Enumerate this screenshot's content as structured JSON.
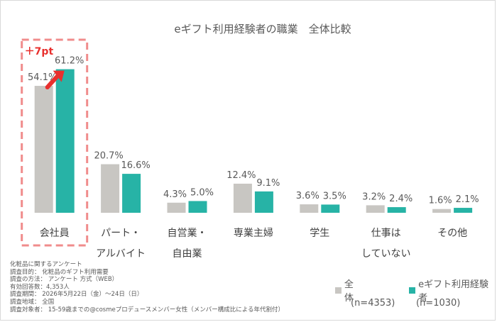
{
  "chart_data": {
    "type": "bar",
    "title": "eギフト利用経験者の職業　全体比較",
    "categories": [
      [
        "会社員"
      ],
      [
        "パート・",
        "アルバイト"
      ],
      [
        "自営業・",
        "自由業"
      ],
      [
        "専業主婦"
      ],
      [
        "学生"
      ],
      [
        "仕事は",
        "していない"
      ],
      [
        "その他"
      ]
    ],
    "series": [
      {
        "name": "全体",
        "values": [
          54.1,
          20.7,
          4.3,
          12.4,
          3.6,
          3.2,
          1.6
        ],
        "labels": [
          "54.1%",
          "20.7%",
          "4.3%",
          "12.4%",
          "3.6%",
          "3.2%",
          "1.6%"
        ],
        "color": "#c8c6c2"
      },
      {
        "name": "eギフト利用経験者",
        "values": [
          61.2,
          16.6,
          5.0,
          9.1,
          3.5,
          2.4,
          2.1
        ],
        "labels": [
          "61.2%",
          "16.6%",
          "5.0%",
          "9.1%",
          "3.5%",
          "2.4%",
          "2.1%"
        ],
        "color": "#27b3a6"
      }
    ],
    "ylim": [
      0,
      65
    ],
    "grid": false,
    "highlight": {
      "category": "会社員",
      "text": "＋7pt",
      "color": "#e8302e"
    }
  },
  "legend": {
    "items": [
      {
        "name": "全体",
        "n": "(n=4353)",
        "color": "#c8c6c2"
      },
      {
        "name": "eギフト利用経験者",
        "n": "(n=1030)",
        "color": "#27b3a6"
      }
    ]
  },
  "notes": [
    "化粧品に関するアンケート",
    "調査目的： 化粧品のギフト利用需要",
    "調査の方法： アンケート 方式（WEB）",
    "有効回答数：4,353人",
    "調査期間： 2026年5月22日（金）～24日（日）",
    "調査地域： 全国",
    "調査対象者： 15-59歳までの@cosmeプロデュースメンバー女性（メンバー構成比による年代割付）"
  ]
}
